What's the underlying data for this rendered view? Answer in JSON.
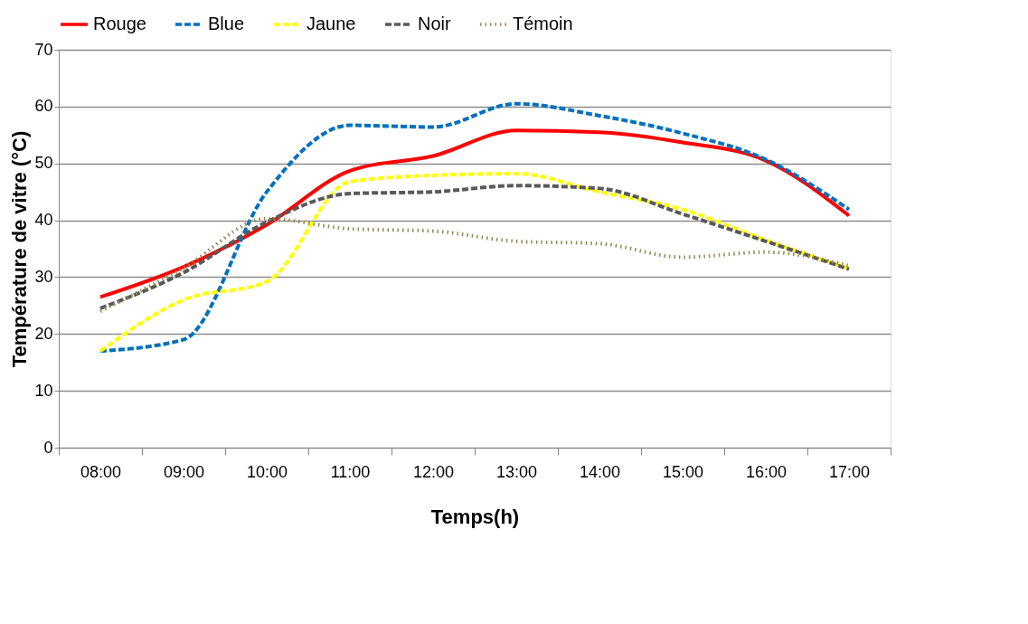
{
  "chart_data": {
    "type": "line",
    "xlabel": "Temps(h)",
    "ylabel": "Température de vitre (°C)",
    "categories": [
      "08:00",
      "09:00",
      "10:00",
      "11:00",
      "12:00",
      "13:00",
      "14:00",
      "15:00",
      "16:00",
      "17:00"
    ],
    "series": [
      {
        "name": "Rouge",
        "color": "#ff0000",
        "line_style": "solid",
        "values": [
          26.5,
          31.8,
          39.2,
          48.7,
          51.3,
          55.8,
          55.5,
          53.7,
          50.5,
          40.8
        ]
      },
      {
        "name": "Blue",
        "color": "#0070c0",
        "line_style": "dashed",
        "values": [
          17,
          19,
          45,
          56.7,
          56.4,
          60.5,
          58.4,
          55.3,
          50.7,
          41.9
        ]
      },
      {
        "name": "Jaune",
        "color": "#ffff00",
        "line_style": "dashed",
        "values": [
          17,
          26,
          29.2,
          46.8,
          47.9,
          48.2,
          45,
          41.9,
          36.5,
          31.5
        ]
      },
      {
        "name": "Noir",
        "color": "#595959",
        "line_style": "dashed",
        "values": [
          24.5,
          30.8,
          39.7,
          44.7,
          45,
          46.1,
          45.6,
          41.1,
          36.3,
          31.4
        ]
      },
      {
        "name": "Témoin",
        "color": "#948a54",
        "line_style": "dotted",
        "values": [
          24,
          31.6,
          40.3,
          38.5,
          38.1,
          36.3,
          35.9,
          33.5,
          34.4,
          32
        ]
      }
    ],
    "ylim": [
      0,
      70
    ],
    "yticks": [
      0,
      10,
      20,
      30,
      40,
      50,
      60,
      70
    ],
    "grid": "y",
    "legend": "top",
    "marker": "none"
  }
}
